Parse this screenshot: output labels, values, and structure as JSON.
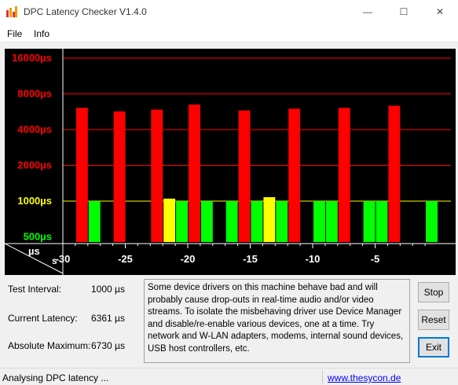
{
  "window": {
    "title": "DPC Latency Checker V1.4.0",
    "minimize_glyph": "—",
    "maximize_glyph": "☐",
    "close_glyph": "✕"
  },
  "menu": {
    "items": [
      "File",
      "Info"
    ]
  },
  "chart_data": {
    "type": "bar",
    "y_scale": "log",
    "y_ticks": [
      {
        "value": 16000,
        "label": "16000µs",
        "color": "#ff0000"
      },
      {
        "value": 8000,
        "label": "8000µs",
        "color": "#ff0000"
      },
      {
        "value": 4000,
        "label": "4000µs",
        "color": "#ff0000"
      },
      {
        "value": 2000,
        "label": "2000µs",
        "color": "#ff0000"
      },
      {
        "value": 1000,
        "label": "1000µs",
        "color": "#ffff00"
      },
      {
        "value": 500,
        "label": "500µs",
        "color": "#00ff00"
      }
    ],
    "x_ticks": [
      -30,
      -25,
      -20,
      -15,
      -10,
      -5
    ],
    "x_corner_top": "µs",
    "x_corner_bottom": "s",
    "thresholds": {
      "green_max": 1000,
      "yellow_max": 2000
    },
    "colors": {
      "green": "#00ff00",
      "yellow": "#ffff00",
      "red": "#ff0000",
      "grid_red": "#ff0000",
      "grid_yellow": "#ffff00",
      "background": "#000000"
    },
    "values": [
      420,
      6100,
      1000,
      350,
      5700,
      350,
      350,
      5900,
      1050,
      1000,
      6500,
      1000,
      420,
      1000,
      5800,
      1000,
      1080,
      1000,
      6000,
      400,
      1000,
      1000,
      6100,
      350,
      1000,
      1000,
      6361,
      360,
      400,
      1000
    ]
  },
  "stats": {
    "test_interval_label": "Test Interval:",
    "test_interval_value": "1000 µs",
    "current_latency_label": "Current Latency:",
    "current_latency_value": "6361 µs",
    "absolute_maximum_label": "Absolute Maximum:",
    "absolute_maximum_value": "6730 µs"
  },
  "message": "Some device drivers on this machine behave bad and will probably cause drop-outs in real-time audio and/or video streams. To isolate the misbehaving driver use Device Manager and disable/re-enable various devices, one at a time. Try network and W-LAN adapters, modems, internal sound devices, USB host controllers, etc.",
  "buttons": {
    "stop": "Stop",
    "reset": "Reset",
    "exit": "Exit"
  },
  "status": {
    "text": "Analysing DPC latency ...",
    "link": "www.thesycon.de"
  }
}
